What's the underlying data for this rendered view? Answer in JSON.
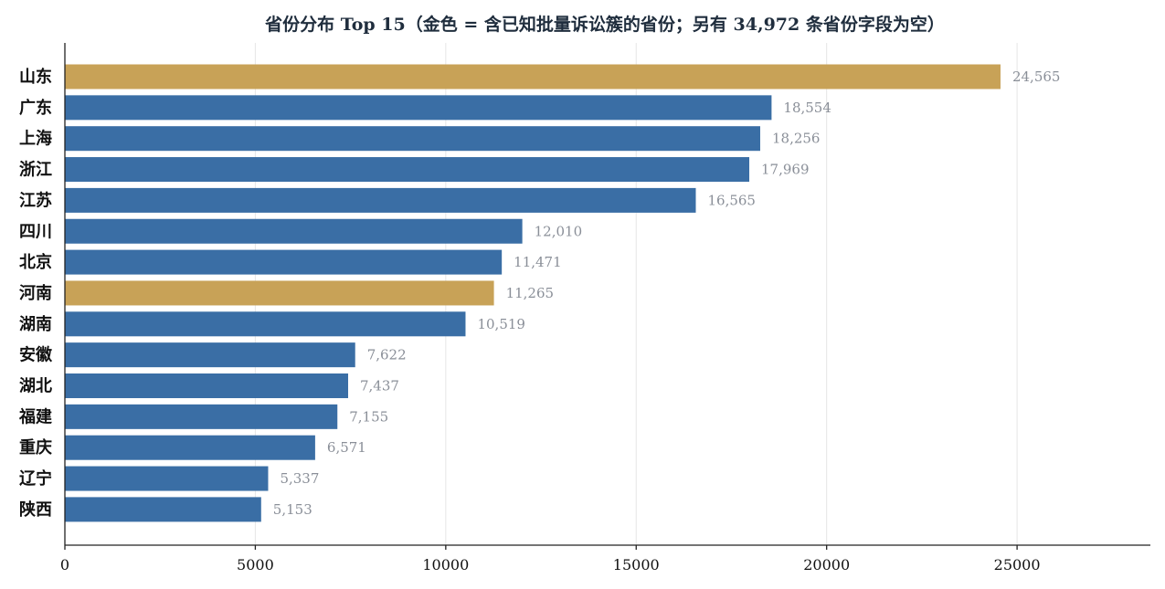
{
  "chart_data": {
    "type": "bar",
    "orientation": "horizontal",
    "title": "省份分布 Top 15（金色 = 含已知批量诉讼簇的省份；另有 34,972 条省份字段为空）",
    "categories": [
      "山东",
      "广东",
      "上海",
      "浙江",
      "江苏",
      "四川",
      "北京",
      "河南",
      "湖南",
      "安徽",
      "湖北",
      "福建",
      "重庆",
      "辽宁",
      "陕西"
    ],
    "values": [
      24565,
      18554,
      18256,
      17969,
      16565,
      12010,
      11471,
      11265,
      10519,
      7622,
      7437,
      7155,
      6571,
      5337,
      5153
    ],
    "value_labels": [
      "24,565",
      "18,554",
      "18,256",
      "17,969",
      "16,565",
      "12,010",
      "11,471",
      "11,265",
      "10,519",
      "7,622",
      "7,437",
      "7,155",
      "6,571",
      "5,337",
      "5,153"
    ],
    "highlighted": [
      "山东",
      "河南"
    ],
    "xlim": [
      0,
      28500
    ],
    "xticks": [
      0,
      5000,
      10000,
      15000,
      20000,
      25000
    ],
    "xtick_labels": [
      "0",
      "5000",
      "10000",
      "15000",
      "20000",
      "25000"
    ],
    "grid": "vertical",
    "xlabel": "",
    "ylabel": "",
    "colors": {
      "default": "#3a6ea5",
      "highlight": "#c8a257"
    }
  }
}
